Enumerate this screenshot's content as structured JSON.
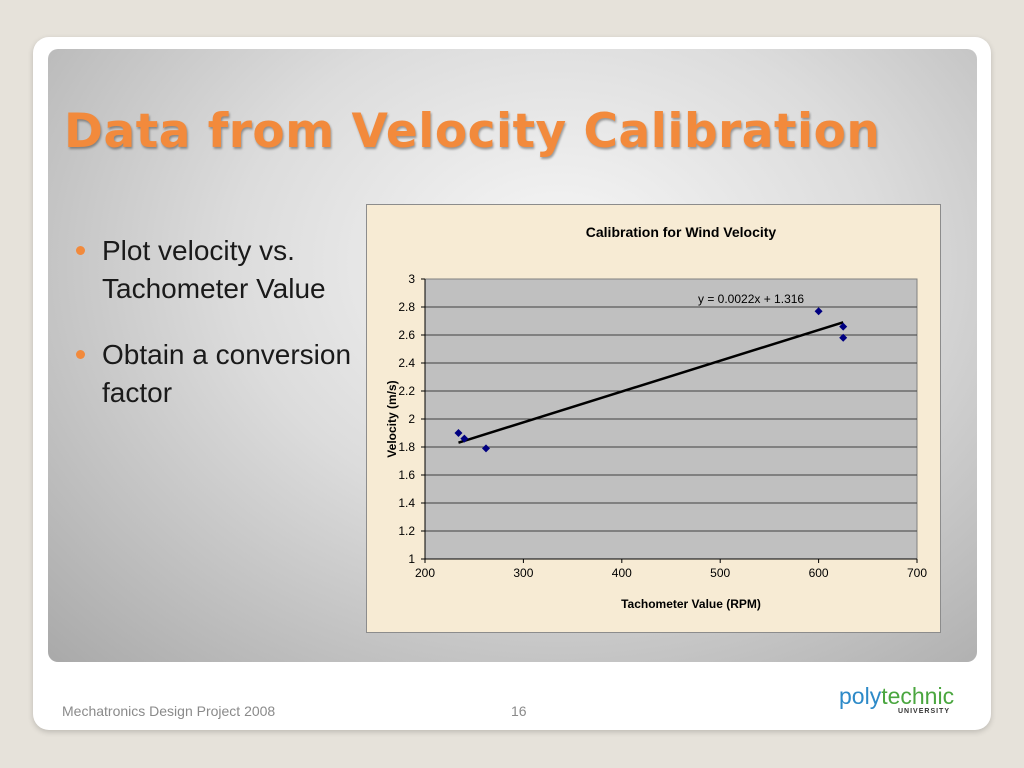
{
  "slide": {
    "title": "Data from Velocity Calibration",
    "bullets": [
      "Plot velocity vs. Tachometer Value",
      "Obtain a conversion factor"
    ],
    "accent_color": "#f28a3c"
  },
  "footer": {
    "project": "Mechatronics Design Project 2008",
    "page_number": "16"
  },
  "logo": {
    "part1": "poly",
    "part2": "technic",
    "subtitle": "UNIVERSITY",
    "colors": {
      "part1": "#2d8ac8",
      "part2": "#4aa63f"
    }
  },
  "chart_data": {
    "type": "scatter",
    "title": "Calibration for Wind Velocity",
    "xlabel": "Tachometer Value (RPM)",
    "ylabel": "Velocity (m/s)",
    "xlim": [
      200,
      700
    ],
    "ylim": [
      1,
      3
    ],
    "x_ticks": [
      200,
      300,
      400,
      500,
      600,
      700
    ],
    "y_ticks": [
      1,
      1.2,
      1.4,
      1.6,
      1.8,
      2,
      2.2,
      2.4,
      2.6,
      2.8,
      3
    ],
    "grid": "horizontal",
    "points": [
      {
        "x": 234,
        "y": 1.9
      },
      {
        "x": 240,
        "y": 1.86
      },
      {
        "x": 262,
        "y": 1.79
      },
      {
        "x": 600,
        "y": 2.77
      },
      {
        "x": 625,
        "y": 2.66
      },
      {
        "x": 625,
        "y": 2.58
      }
    ],
    "trendline": {
      "slope": 0.0022,
      "intercept": 1.316,
      "x_range": [
        234,
        625
      ],
      "equation": "y = 0.0022x + 1.316"
    },
    "colors": {
      "plot_area": "#c0c0c0",
      "chart_area": "#f7ebd4",
      "marker": "#000080",
      "trendline": "#000000"
    }
  }
}
